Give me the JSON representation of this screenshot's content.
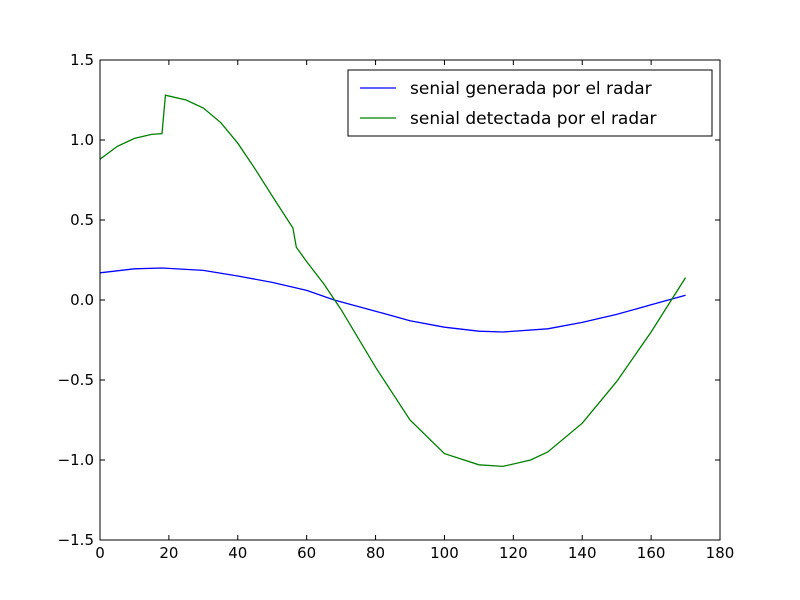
{
  "chart_data": {
    "type": "line",
    "title": "",
    "xlabel": "",
    "ylabel": "",
    "xlim": [
      0,
      180
    ],
    "ylim": [
      -1.5,
      1.5
    ],
    "xticks": [
      0,
      20,
      40,
      60,
      80,
      100,
      120,
      140,
      160,
      180
    ],
    "yticks": [
      -1.5,
      -1.0,
      -0.5,
      0.0,
      0.5,
      1.0,
      1.5
    ],
    "xtick_labels": [
      "0",
      "20",
      "40",
      "60",
      "80",
      "100",
      "120",
      "140",
      "160",
      "180"
    ],
    "ytick_labels": [
      "−1.5",
      "−1.0",
      "−0.5",
      "0.0",
      "0.5",
      "1.0",
      "1.5"
    ],
    "grid": false,
    "legend_position": "top-right",
    "series": [
      {
        "name": "senial generada por el radar",
        "color": "#0000ff",
        "x": [
          0,
          10,
          18,
          30,
          40,
          50,
          60,
          68,
          80,
          90,
          100,
          110,
          117,
          130,
          140,
          150,
          160,
          170
        ],
        "y": [
          0.17,
          0.195,
          0.2,
          0.185,
          0.15,
          0.11,
          0.06,
          0.0,
          -0.07,
          -0.13,
          -0.17,
          -0.195,
          -0.2,
          -0.18,
          -0.14,
          -0.09,
          -0.03,
          0.03
        ]
      },
      {
        "name": "senial detectada por el radar",
        "color": "#008000",
        "x": [
          0,
          5,
          10,
          15,
          18,
          19,
          25,
          30,
          35,
          40,
          45,
          50,
          56,
          57,
          60,
          65,
          70,
          80,
          90,
          100,
          110,
          117,
          125,
          130,
          140,
          150,
          160,
          170
        ],
        "y": [
          0.88,
          0.96,
          1.01,
          1.035,
          1.04,
          1.28,
          1.25,
          1.2,
          1.11,
          0.98,
          0.82,
          0.65,
          0.45,
          0.33,
          0.24,
          0.1,
          -0.06,
          -0.42,
          -0.75,
          -0.96,
          -1.03,
          -1.04,
          -1.0,
          -0.95,
          -0.77,
          -0.51,
          -0.2,
          0.14
        ]
      }
    ]
  }
}
